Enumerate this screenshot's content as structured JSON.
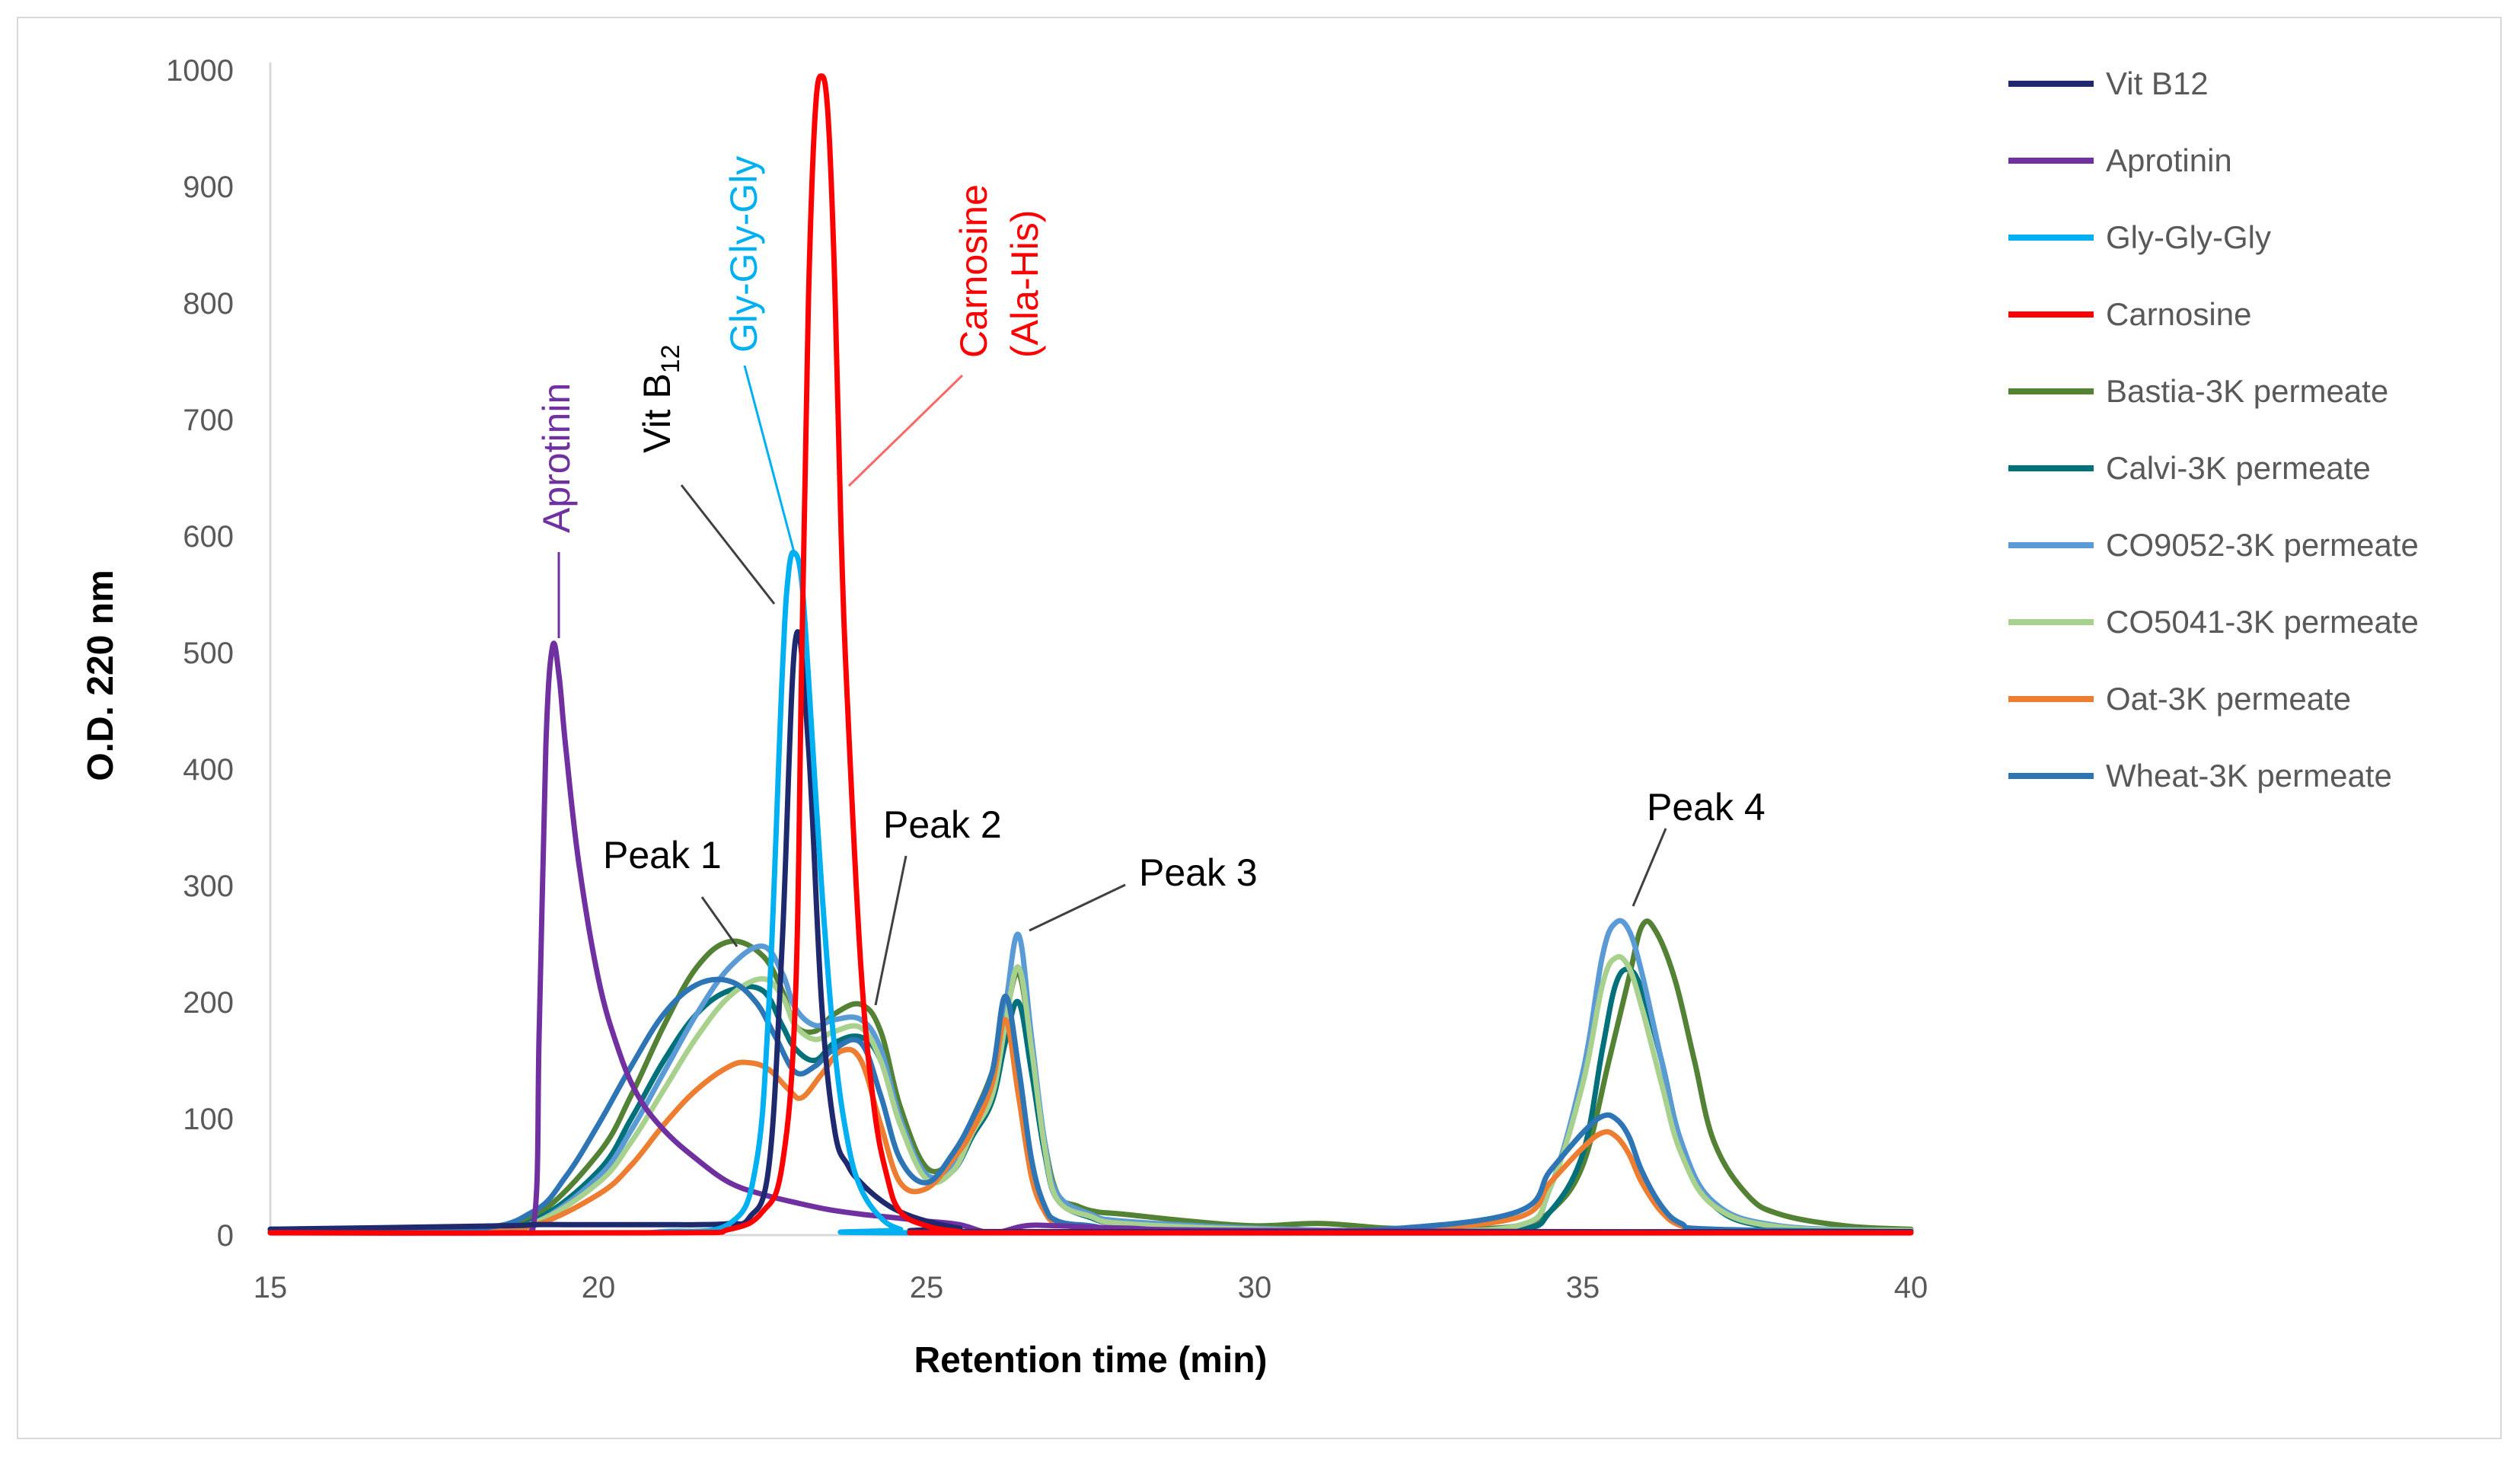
{
  "chart_data": {
    "type": "line",
    "xlabel": "Retention time (min)",
    "ylabel": "O.D. 220 nm",
    "xlim": [
      15,
      40
    ],
    "ylim": [
      0,
      1000
    ],
    "x_ticks": [
      "15",
      "20",
      "25",
      "30",
      "35",
      "40"
    ],
    "y_ticks": [
      "0",
      "100",
      "200",
      "300",
      "400",
      "500",
      "600",
      "700",
      "800",
      "900",
      "1000"
    ],
    "grid": false,
    "legend_position": "right",
    "series": [
      {
        "name": "Vit B12",
        "color": "#1f2a6e",
        "x": [
          15,
          18.5,
          19,
          19.5,
          20,
          20.5,
          21,
          21.5,
          22,
          22.3,
          22.6,
          22.8,
          23,
          23.2,
          23.4,
          23.6,
          23.8,
          24,
          24.3,
          24.6,
          25,
          25.5,
          26,
          40
        ],
        "y": [
          5,
          8,
          9,
          9,
          9,
          9,
          9,
          9,
          10,
          15,
          60,
          250,
          510,
          420,
          200,
          90,
          60,
          45,
          30,
          20,
          12,
          6,
          3,
          3
        ]
      },
      {
        "name": "Aprotinin",
        "color": "#7030a0",
        "x": [
          15,
          18.5,
          19,
          19.1,
          19.2,
          19.3,
          19.4,
          19.5,
          19.7,
          20,
          20.3,
          20.6,
          21,
          21.5,
          22,
          22.5,
          23,
          23.5,
          24,
          24.5,
          25,
          25.5,
          26,
          26.5,
          27,
          28,
          30,
          40
        ],
        "y": [
          2,
          2,
          5,
          180,
          420,
          505,
          480,
          420,
          320,
          220,
          160,
          120,
          90,
          65,
          45,
          35,
          28,
          22,
          18,
          15,
          12,
          9,
          2,
          8,
          8,
          6,
          4,
          2
        ]
      },
      {
        "name": "Gly-Gly-Gly",
        "color": "#00b0f0",
        "x": [
          15,
          20,
          21,
          22,
          22.4,
          22.6,
          22.8,
          22.9,
          23,
          23.1,
          23.2,
          23.4,
          23.6,
          23.8,
          24,
          24.3,
          24.6,
          25,
          40
        ],
        "y": [
          2,
          2,
          3,
          10,
          60,
          200,
          480,
          570,
          585,
          560,
          480,
          300,
          160,
          80,
          40,
          15,
          5,
          2,
          2
        ]
      },
      {
        "name": "Carnosine",
        "color": "#ff0000",
        "x": [
          15,
          21,
          22,
          22.5,
          22.8,
          23,
          23.1,
          23.2,
          23.3,
          23.4,
          23.5,
          23.6,
          23.7,
          23.8,
          24,
          24.2,
          24.4,
          24.6,
          25,
          25.5,
          26,
          40
        ],
        "y": [
          2,
          2,
          5,
          20,
          60,
          200,
          500,
          800,
          960,
          995,
          960,
          820,
          600,
          450,
          230,
          110,
          50,
          20,
          8,
          3,
          2,
          2
        ]
      },
      {
        "name": "Bastia-3K permeate",
        "color": "#548235",
        "x": [
          15,
          18,
          19,
          20,
          20.5,
          21,
          21.5,
          22,
          22.5,
          22.8,
          23,
          23.3,
          23.6,
          24,
          24.3,
          24.6,
          25,
          25.4,
          25.7,
          26,
          26.2,
          26.4,
          26.6,
          26.8,
          27,
          27.3,
          27.6,
          28,
          29,
          30,
          31,
          32,
          33,
          34,
          34.5,
          35,
          35.4,
          35.7,
          35.9,
          36.1,
          36.4,
          36.7,
          37,
          37.5,
          38,
          39,
          40
        ],
        "y": [
          5,
          5,
          15,
          70,
          120,
          180,
          230,
          252,
          240,
          210,
          180,
          175,
          190,
          198,
          175,
          110,
          58,
          65,
          100,
          140,
          185,
          225,
          160,
          80,
          35,
          25,
          20,
          18,
          12,
          8,
          10,
          6,
          5,
          8,
          20,
          60,
          150,
          220,
          265,
          262,
          220,
          150,
          80,
          35,
          18,
          8,
          5
        ]
      },
      {
        "name": "Calvi-3K permeate",
        "color": "#00707a",
        "x": [
          15,
          18,
          19,
          20,
          20.5,
          21,
          21.5,
          22,
          22.5,
          22.8,
          23,
          23.3,
          23.6,
          24,
          24.3,
          24.6,
          25,
          25.4,
          25.7,
          26,
          26.2,
          26.4,
          26.6,
          26.8,
          27,
          27.5,
          28,
          30,
          32,
          34,
          34.5,
          35,
          35.3,
          35.5,
          35.7,
          35.9,
          36.2,
          36.5,
          37,
          38,
          40
        ],
        "y": [
          3,
          4,
          12,
          55,
          100,
          150,
          190,
          210,
          210,
          180,
          160,
          150,
          165,
          170,
          150,
          95,
          50,
          55,
          85,
          115,
          165,
          200,
          140,
          70,
          30,
          15,
          10,
          5,
          3,
          5,
          20,
          70,
          160,
          215,
          228,
          210,
          150,
          80,
          25,
          6,
          3
        ]
      },
      {
        "name": "CO9052-3K permeate",
        "color": "#5b9bd5",
        "x": [
          15,
          18,
          19,
          20,
          20.5,
          21,
          21.5,
          22,
          22.5,
          22.8,
          23,
          23.3,
          23.6,
          24,
          24.3,
          24.6,
          25,
          25.4,
          25.7,
          26,
          26.2,
          26.4,
          26.6,
          26.8,
          27,
          27.5,
          28,
          30,
          32,
          34,
          34.5,
          35,
          35.3,
          35.5,
          35.7,
          35.9,
          36.2,
          36.5,
          37,
          38,
          40
        ],
        "y": [
          3,
          4,
          10,
          50,
          90,
          140,
          190,
          230,
          248,
          225,
          195,
          180,
          185,
          185,
          160,
          100,
          52,
          60,
          95,
          130,
          195,
          258,
          170,
          80,
          35,
          18,
          12,
          6,
          4,
          8,
          40,
          140,
          240,
          268,
          262,
          225,
          150,
          80,
          28,
          8,
          4
        ]
      },
      {
        "name": "CO5041-3K permeate",
        "color": "#a9d18e",
        "x": [
          15,
          18,
          19,
          20,
          20.5,
          21,
          21.5,
          22,
          22.5,
          22.8,
          23,
          23.3,
          23.6,
          24,
          24.3,
          24.6,
          25,
          25.4,
          25.7,
          26,
          26.2,
          26.4,
          26.6,
          26.8,
          27,
          27.5,
          28,
          30,
          32,
          34,
          34.5,
          35,
          35.3,
          35.5,
          35.7,
          35.9,
          36.2,
          36.5,
          37,
          38,
          40
        ],
        "y": [
          3,
          4,
          10,
          45,
          80,
          125,
          170,
          205,
          220,
          205,
          180,
          168,
          175,
          178,
          150,
          95,
          48,
          55,
          88,
          120,
          180,
          230,
          160,
          75,
          30,
          16,
          10,
          5,
          4,
          8,
          40,
          130,
          215,
          238,
          230,
          195,
          130,
          70,
          25,
          7,
          4
        ]
      },
      {
        "name": "Oat-3K permeate",
        "color": "#ed7d31",
        "x": [
          15,
          18,
          19,
          20,
          20.5,
          21,
          21.5,
          22,
          22.3,
          22.6,
          22.9,
          23.1,
          23.4,
          23.7,
          24,
          24.3,
          24.6,
          25,
          25.4,
          25.7,
          26,
          26.2,
          26.4,
          26.6,
          26.8,
          27,
          27.5,
          28,
          30,
          32,
          34,
          34.5,
          35,
          35.3,
          35.5,
          35.7,
          35.9,
          36.2,
          36.5,
          37,
          40
        ],
        "y": [
          2,
          3,
          8,
          35,
          60,
          95,
          125,
          145,
          148,
          142,
          125,
          118,
          138,
          158,
          150,
          95,
          45,
          40,
          65,
          90,
          130,
          185,
          120,
          50,
          20,
          10,
          6,
          4,
          2,
          4,
          15,
          45,
          75,
          88,
          85,
          70,
          45,
          20,
          8,
          4,
          2
        ]
      },
      {
        "name": "Wheat-3K permeate",
        "color": "#2e75b6",
        "x": [
          15,
          18,
          19,
          19.5,
          20,
          20.5,
          21,
          21.5,
          22,
          22.4,
          22.7,
          23,
          23.3,
          23.6,
          24,
          24.3,
          24.6,
          25,
          25.4,
          25.7,
          26,
          26.2,
          26.4,
          26.6,
          26.8,
          27,
          27.5,
          28,
          30,
          32,
          34,
          34.5,
          35,
          35.3,
          35.5,
          35.7,
          35.9,
          36.2,
          36.5,
          37,
          40
        ],
        "y": [
          3,
          5,
          20,
          50,
          95,
          145,
          190,
          215,
          218,
          200,
          170,
          140,
          145,
          160,
          165,
          120,
          65,
          45,
          70,
          100,
          140,
          205,
          145,
          65,
          25,
          12,
          8,
          5,
          3,
          5,
          20,
          55,
          88,
          102,
          100,
          85,
          55,
          25,
          10,
          5,
          3
        ]
      }
    ]
  },
  "annotations": {
    "aprotinin": "Aprotinin",
    "vit_b": "Vit B",
    "vit_sub": "12",
    "glygly": "Gly-Gly-Gly",
    "carnosine": "Carnosine",
    "alahis": "(Ala-His)",
    "peak1": "Peak 1",
    "peak2": "Peak 2",
    "peak3": "Peak 3",
    "peak4": "Peak 4"
  }
}
